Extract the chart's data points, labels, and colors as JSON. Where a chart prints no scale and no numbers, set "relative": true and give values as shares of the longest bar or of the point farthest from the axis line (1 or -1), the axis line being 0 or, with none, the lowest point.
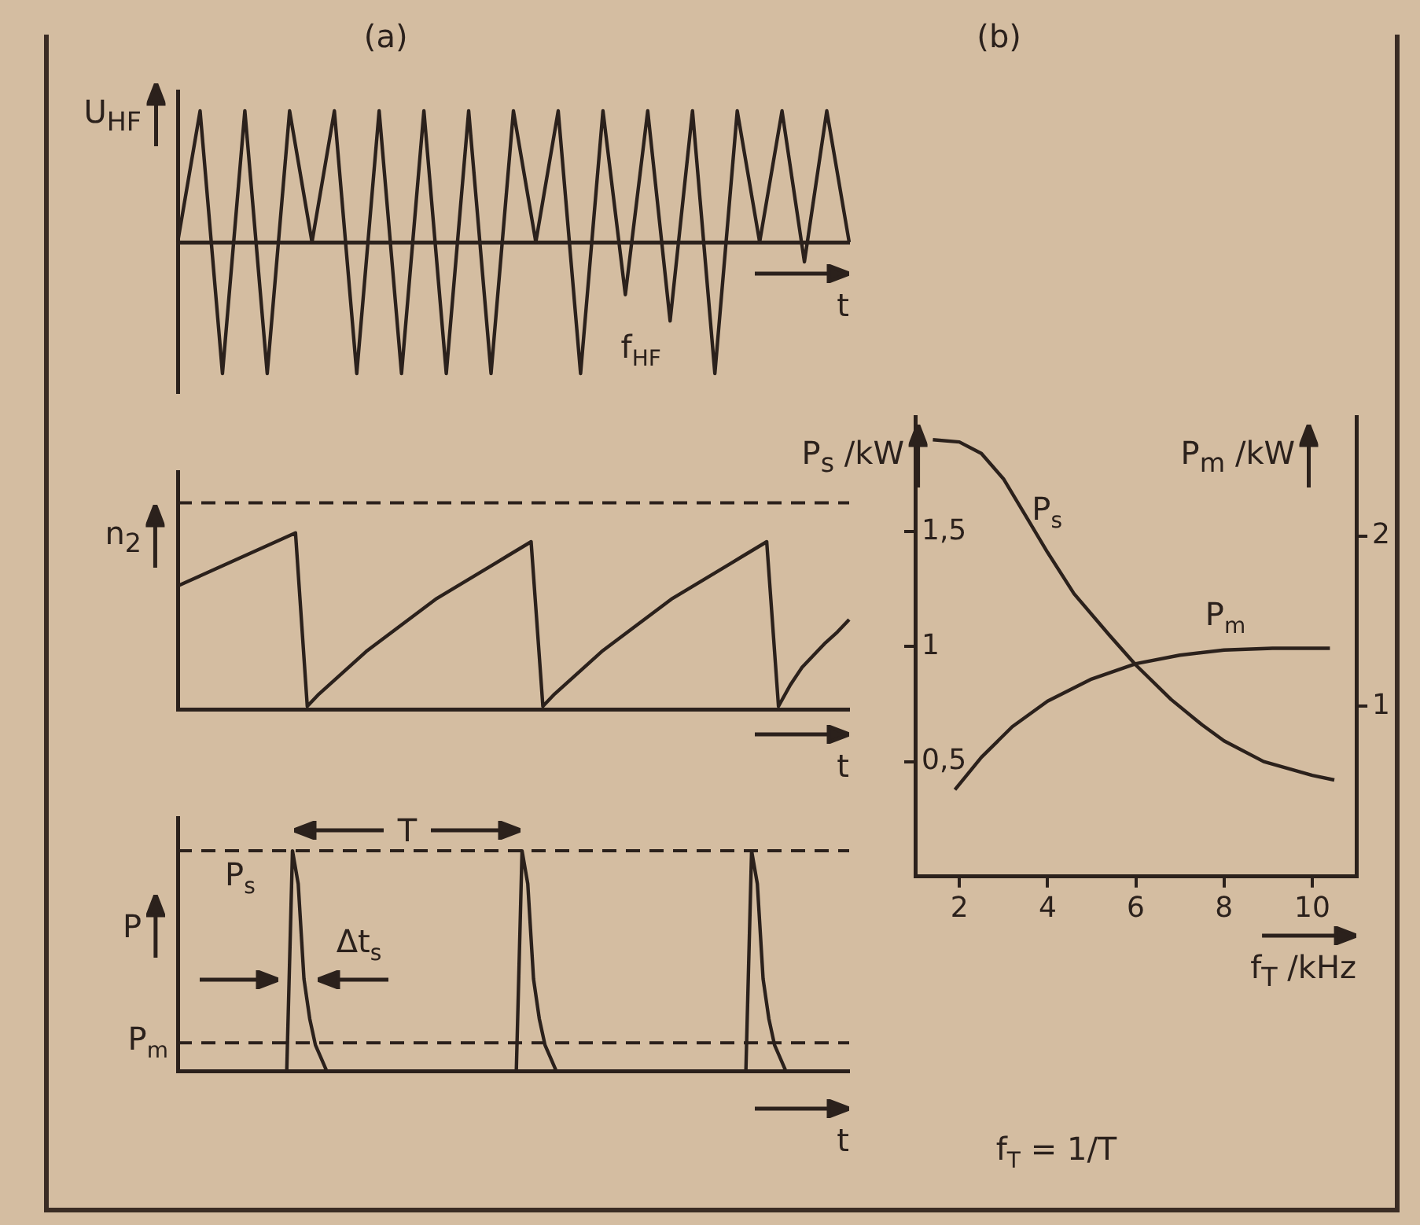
{
  "chart_data": [
    {
      "type": "line",
      "title": "(a)",
      "ylabel": "U$_{HF}$",
      "xlabel": "t",
      "annotations": [
        "f$_{HF}$"
      ],
      "relative": true,
      "marker": "none",
      "color": "#2b211c",
      "categories": [
        null,
        null,
        null,
        null,
        null,
        null,
        null,
        null,
        null,
        null,
        null,
        null,
        null,
        null,
        null,
        null,
        null,
        null,
        null,
        null,
        null,
        null,
        null,
        null,
        null,
        null,
        null,
        null,
        null,
        null,
        null
      ],
      "values": [
        0,
        1,
        -1,
        1,
        -1,
        1,
        0,
        1,
        -1,
        1,
        -1,
        1,
        -1,
        1,
        -1,
        1,
        0,
        1,
        -1,
        1,
        -0.4,
        1,
        -0.6,
        1,
        -1,
        1,
        0,
        1,
        -0.15,
        1,
        0
      ]
    },
    {
      "type": "line",
      "ylabel": "n$_{2}$",
      "xlabel": "t",
      "relative": true,
      "marker": "none",
      "color": "#2b211c",
      "ref_lines": [
        {
          "axis": "y",
          "value": 1.17,
          "line_style": "dashed"
        }
      ],
      "categories": [
        null,
        null,
        null,
        null,
        null,
        null,
        null,
        null,
        null,
        null,
        null,
        null,
        null,
        null,
        null,
        null,
        null,
        null,
        null,
        null,
        null,
        null,
        null,
        null,
        null,
        null,
        null,
        null,
        null,
        null,
        null,
        null,
        null,
        null,
        null,
        null,
        null,
        null,
        null,
        null,
        null,
        null,
        null,
        null,
        null,
        null,
        null,
        null,
        null,
        null,
        null,
        null,
        null,
        null,
        null,
        null,
        null,
        null
      ],
      "values": [
        0.7,
        0.73,
        0.76,
        0.79,
        0.82,
        0.85,
        0.88,
        0.91,
        0.94,
        0.97,
        1,
        0.02,
        0.09,
        0.15,
        0.21,
        0.27,
        0.33,
        0.38,
        0.43,
        0.48,
        0.53,
        0.58,
        0.63,
        0.67,
        0.71,
        0.75,
        0.79,
        0.83,
        0.87,
        0.91,
        0.95,
        0.02,
        0.09,
        0.15,
        0.21,
        0.27,
        0.33,
        0.38,
        0.43,
        0.48,
        0.53,
        0.58,
        0.63,
        0.67,
        0.71,
        0.75,
        0.79,
        0.83,
        0.87,
        0.91,
        0.95,
        0.02,
        0.14,
        0.24,
        0.31,
        0.38,
        0.44,
        0.51
      ]
    },
    {
      "type": "line",
      "ylabel": "P",
      "xlabel": "t",
      "annotations": [
        "T",
        "Δt$_{s}$"
      ],
      "relative": true,
      "marker": "none",
      "color": "#2b211c",
      "ref_lines": [
        {
          "axis": "y",
          "value": 1,
          "label": "P$_{s}$",
          "line_style": "dashed"
        },
        {
          "axis": "y",
          "value": 0.13,
          "label": "P$_{m}$",
          "line_style": "dashed"
        }
      ],
      "categories": [
        null,
        null,
        null,
        null,
        null,
        null,
        null,
        null,
        null,
        null,
        null,
        null,
        null,
        null,
        null,
        null,
        null,
        null,
        null,
        null,
        null,
        null,
        null,
        null,
        null,
        null,
        null,
        null,
        null,
        null,
        null,
        null,
        null,
        null,
        null,
        null,
        null,
        null,
        null,
        null,
        null,
        null,
        null,
        null,
        null,
        null,
        null,
        null,
        null,
        null,
        null,
        null,
        null,
        null,
        null,
        null,
        null,
        null,
        null,
        null,
        null,
        null,
        null,
        null,
        null,
        null,
        null,
        null,
        null,
        null,
        null,
        null,
        null,
        null,
        null,
        null,
        null,
        null,
        null,
        null,
        null,
        null,
        null,
        null,
        null,
        null,
        null,
        null,
        null,
        null,
        null,
        null,
        null,
        null,
        null,
        null,
        null,
        null,
        null,
        null,
        null,
        null,
        null,
        null,
        null,
        null,
        null,
        null,
        null,
        null,
        null,
        null,
        null,
        null,
        null,
        null,
        null,
        null
      ],
      "values": [
        0,
        0,
        0,
        0,
        0,
        0,
        0,
        0,
        0,
        0,
        0,
        0,
        0,
        0,
        0,
        0,
        0,
        0,
        0,
        0,
        1,
        0.85,
        0.42,
        0.24,
        0.12,
        0.06,
        0,
        0,
        0,
        0,
        0,
        0,
        0,
        0,
        0,
        0,
        0,
        0,
        0,
        0,
        0,
        0,
        0,
        0,
        0,
        0,
        0,
        0,
        0,
        0,
        0,
        0,
        0,
        0,
        0,
        0,
        0,
        0,
        0,
        0,
        1,
        0.85,
        0.42,
        0.24,
        0.12,
        0.06,
        0,
        0,
        0,
        0,
        0,
        0,
        0,
        0,
        0,
        0,
        0,
        0,
        0,
        0,
        0,
        0,
        0,
        0,
        0,
        0,
        0,
        0,
        0,
        0,
        0,
        0,
        0,
        0,
        0,
        0,
        0,
        0,
        0,
        0,
        1,
        0.85,
        0.42,
        0.24,
        0.12,
        0.06,
        0,
        0,
        0,
        0,
        0,
        0,
        0,
        0,
        0,
        0,
        0,
        0
      ]
    },
    {
      "type": "line",
      "title": "(b)",
      "xlabel": "f$_{T}$ /kHz",
      "ylabel": "P$_{s}$ /kW",
      "y2label": "P$_{m}$ /kW",
      "annotations": [
        "f$_{T}$ = 1/T"
      ],
      "marker": "none",
      "xlim": [
        1,
        11
      ],
      "xticks": [
        2,
        4,
        6,
        8,
        10
      ],
      "ylim": [
        0,
        2
      ],
      "yticks": [
        {
          "value": 0.5,
          "label": "0,5"
        },
        1,
        {
          "value": 1.5,
          "label": "1,5"
        }
      ],
      "y2lim": [
        0,
        2.7
      ],
      "y2ticks": [
        1,
        2
      ],
      "series": [
        {
          "name": "P$_{s}$",
          "color": "#2b211c",
          "x": [
            1.4,
            2,
            2.5,
            3,
            3.5,
            4,
            4.6,
            5.4,
            6,
            6.8,
            7.5,
            8,
            8.9,
            10,
            10.5
          ],
          "values": [
            1.9,
            1.89,
            1.84,
            1.73,
            1.57,
            1.41,
            1.23,
            1.05,
            0.92,
            0.77,
            0.66,
            0.59,
            0.5,
            0.44,
            0.42
          ]
        },
        {
          "name": "P$_{m}$",
          "color": "#2b211c",
          "axis": "y2",
          "x": [
            1.9,
            2.5,
            3.2,
            4,
            5,
            6,
            7,
            8,
            9.1,
            10.4
          ],
          "values": [
            0.51,
            0.7,
            0.88,
            1.03,
            1.16,
            1.25,
            1.3,
            1.33,
            1.34,
            1.34
          ]
        }
      ]
    }
  ]
}
